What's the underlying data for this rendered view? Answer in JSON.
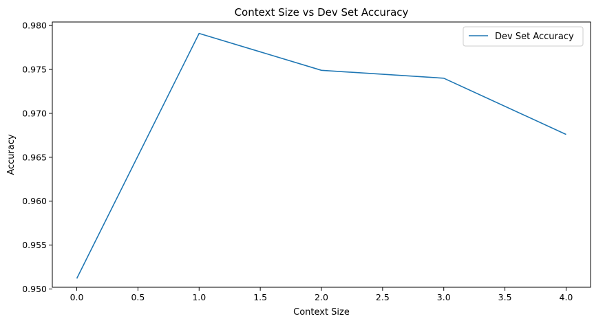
{
  "chart_data": {
    "type": "line",
    "title": "Context Size vs Dev Set Accuracy",
    "xlabel": "Context Size",
    "ylabel": "Accuracy",
    "xlim": [
      -0.2,
      4.2
    ],
    "ylim": [
      0.9502,
      0.9804
    ],
    "xticks": [
      0.0,
      0.5,
      1.0,
      1.5,
      2.0,
      2.5,
      3.0,
      3.5,
      4.0
    ],
    "xtick_labels": [
      "0.0",
      "0.5",
      "1.0",
      "1.5",
      "2.0",
      "2.5",
      "3.0",
      "3.5",
      "4.0"
    ],
    "yticks": [
      0.95,
      0.955,
      0.96,
      0.965,
      0.97,
      0.975,
      0.98
    ],
    "ytick_labels": [
      "0.950",
      "0.955",
      "0.960",
      "0.965",
      "0.970",
      "0.975",
      "0.980"
    ],
    "grid": false,
    "legend": "upper-right",
    "series": [
      {
        "name": "Dev Set Accuracy",
        "color": "#1f77b4",
        "x": [
          0,
          1,
          2,
          3,
          4
        ],
        "y": [
          0.9512,
          0.9791,
          0.9749,
          0.974,
          0.9676
        ]
      }
    ]
  }
}
